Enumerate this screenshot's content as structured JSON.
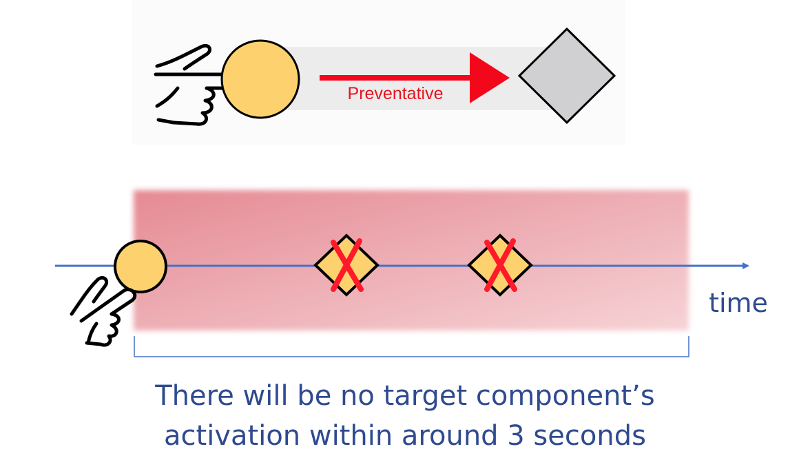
{
  "top_panel": {
    "arrow_label": "Preventative"
  },
  "timeline": {
    "axis_label": "time"
  },
  "caption": {
    "line1": "There will be no target component’s",
    "line2": "activation within around 3 seconds"
  },
  "colors": {
    "trigger_fill": "#fdd26e",
    "arrow_red": "#f2071b",
    "panel_gray": "#ececec",
    "target_gray": "#d0cfd1",
    "axis_blue": "#4472c4",
    "text_blue": "#2f4a8f",
    "shade_red": "#e38a93",
    "cross_red": "#ff1a2a"
  },
  "icons": [
    "pointing-hand-icon",
    "trigger-circle-icon",
    "target-diamond-icon",
    "cross-icon"
  ]
}
